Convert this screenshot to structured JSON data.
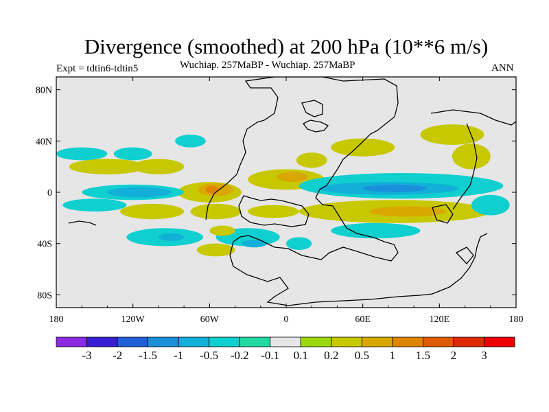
{
  "chart_data": {
    "type": "heatmap",
    "title": "Divergence (smoothed) at 200 hPa (10**6 m/s)",
    "subtitle_left": "Expt = tdtin6-tdtin5",
    "subtitle_center": "Wuchiap. 257MaBP - Wuchiap. 257MaBP",
    "subtitle_right": "ANN",
    "x_range": [
      -180,
      180
    ],
    "y_range": [
      -90,
      90
    ],
    "x_ticks": [
      {
        "value": -180,
        "label": "180"
      },
      {
        "value": -120,
        "label": "120W"
      },
      {
        "value": -60,
        "label": "60W"
      },
      {
        "value": 0,
        "label": "0"
      },
      {
        "value": 60,
        "label": "60E"
      },
      {
        "value": 120,
        "label": "120E"
      },
      {
        "value": 180,
        "label": "180"
      }
    ],
    "y_ticks": [
      {
        "value": 80,
        "label": "80N"
      },
      {
        "value": 40,
        "label": "40N"
      },
      {
        "value": 0,
        "label": "0"
      },
      {
        "value": -40,
        "label": "40S"
      },
      {
        "value": -80,
        "label": "80S"
      }
    ],
    "colorbar": {
      "levels": [
        "-3",
        "-2",
        "-1.5",
        "-1",
        "-0.5",
        "-0.2",
        "-0.1",
        "0.1",
        "0.2",
        "0.5",
        "1",
        "1.5",
        "2",
        "3"
      ],
      "colors": [
        "#8a2be2",
        "#3a1ed6",
        "#1f5fd8",
        "#1a8fdb",
        "#12b0d8",
        "#10cfcf",
        "#20d8a0",
        "#e6e6e6",
        "#9bd80f",
        "#c8c800",
        "#d8a800",
        "#df8400",
        "#e05a00",
        "#e02a00",
        "#ee0000"
      ]
    },
    "background_color": "#e6e6e6",
    "regions": [
      {
        "level": "0.2",
        "lon": -60,
        "lat": 0,
        "rlon": 25,
        "rlat": 8
      },
      {
        "level": "0.5",
        "lon": -55,
        "lat": 2,
        "rlon": 14,
        "rlat": 5
      },
      {
        "level": "1",
        "lon": -58,
        "lat": 2,
        "rlon": 5,
        "rlat": 3
      },
      {
        "level": "-0.2",
        "lon": -120,
        "lat": 0,
        "rlon": 40,
        "rlat": 6
      },
      {
        "level": "-0.5",
        "lon": -115,
        "lat": 0,
        "rlon": 25,
        "rlat": 4
      },
      {
        "level": "-0.2",
        "lon": -150,
        "lat": -10,
        "rlon": 25,
        "rlat": 5
      },
      {
        "level": "0.2",
        "lon": -140,
        "lat": 20,
        "rlon": 30,
        "rlat": 6
      },
      {
        "level": "0.2",
        "lon": -100,
        "lat": 20,
        "rlon": 20,
        "rlat": 6
      },
      {
        "level": "-0.2",
        "lon": -75,
        "lat": 40,
        "rlon": 12,
        "rlat": 5
      },
      {
        "level": "-0.2",
        "lon": -120,
        "lat": 30,
        "rlon": 15,
        "rlat": 5
      },
      {
        "level": "-0.2",
        "lon": -160,
        "lat": 30,
        "rlon": 20,
        "rlat": 5
      },
      {
        "level": "0.2",
        "lon": -105,
        "lat": -15,
        "rlon": 25,
        "rlat": 6
      },
      {
        "level": "0.2",
        "lon": -55,
        "lat": -15,
        "rlon": 20,
        "rlat": 6
      },
      {
        "level": "0.2",
        "lon": -10,
        "lat": -15,
        "rlon": 20,
        "rlat": 5
      },
      {
        "level": "-0.2",
        "lon": -95,
        "lat": -35,
        "rlon": 30,
        "rlat": 7
      },
      {
        "level": "-0.5",
        "lon": -90,
        "lat": -35,
        "rlon": 10,
        "rlat": 3
      },
      {
        "level": "-0.2",
        "lon": -30,
        "lat": -35,
        "rlon": 25,
        "rlat": 7
      },
      {
        "level": "-0.5",
        "lon": -25,
        "lat": -40,
        "rlon": 10,
        "rlat": 3
      },
      {
        "level": "0.2",
        "lon": -50,
        "lat": -30,
        "rlon": 10,
        "rlat": 4
      },
      {
        "level": "0.2",
        "lon": 0,
        "lat": 10,
        "rlon": 30,
        "rlat": 8
      },
      {
        "level": "0.5",
        "lon": 5,
        "lat": 12,
        "rlon": 12,
        "rlat": 4
      },
      {
        "level": "0.2",
        "lon": 20,
        "lat": 25,
        "rlon": 12,
        "rlat": 6
      },
      {
        "level": "0.2",
        "lon": 60,
        "lat": 35,
        "rlon": 25,
        "rlat": 7
      },
      {
        "level": "-0.2",
        "lon": 90,
        "lat": 5,
        "rlon": 80,
        "rlat": 10
      },
      {
        "level": "-0.5",
        "lon": 80,
        "lat": 3,
        "rlon": 55,
        "rlat": 5
      },
      {
        "level": "-1",
        "lon": 85,
        "lat": 3,
        "rlon": 25,
        "rlat": 3
      },
      {
        "level": "0.2",
        "lon": 85,
        "lat": -15,
        "rlon": 75,
        "rlat": 9
      },
      {
        "level": "0.5",
        "lon": 95,
        "lat": -15,
        "rlon": 30,
        "rlat": 4
      },
      {
        "level": "-0.2",
        "lon": 70,
        "lat": -30,
        "rlon": 35,
        "rlat": 6
      },
      {
        "level": "0.2",
        "lon": 130,
        "lat": 45,
        "rlon": 25,
        "rlat": 8
      },
      {
        "level": "0.2",
        "lon": 145,
        "lat": 28,
        "rlon": 15,
        "rlat": 10
      },
      {
        "level": "-0.2",
        "lon": 160,
        "lat": -10,
        "rlon": 15,
        "rlat": 8
      },
      {
        "level": "-0.2",
        "lon": 10,
        "lat": -40,
        "rlon": 10,
        "rlat": 5
      },
      {
        "level": "0.2",
        "lon": -55,
        "lat": -45,
        "rlon": 15,
        "rlat": 5
      }
    ]
  }
}
